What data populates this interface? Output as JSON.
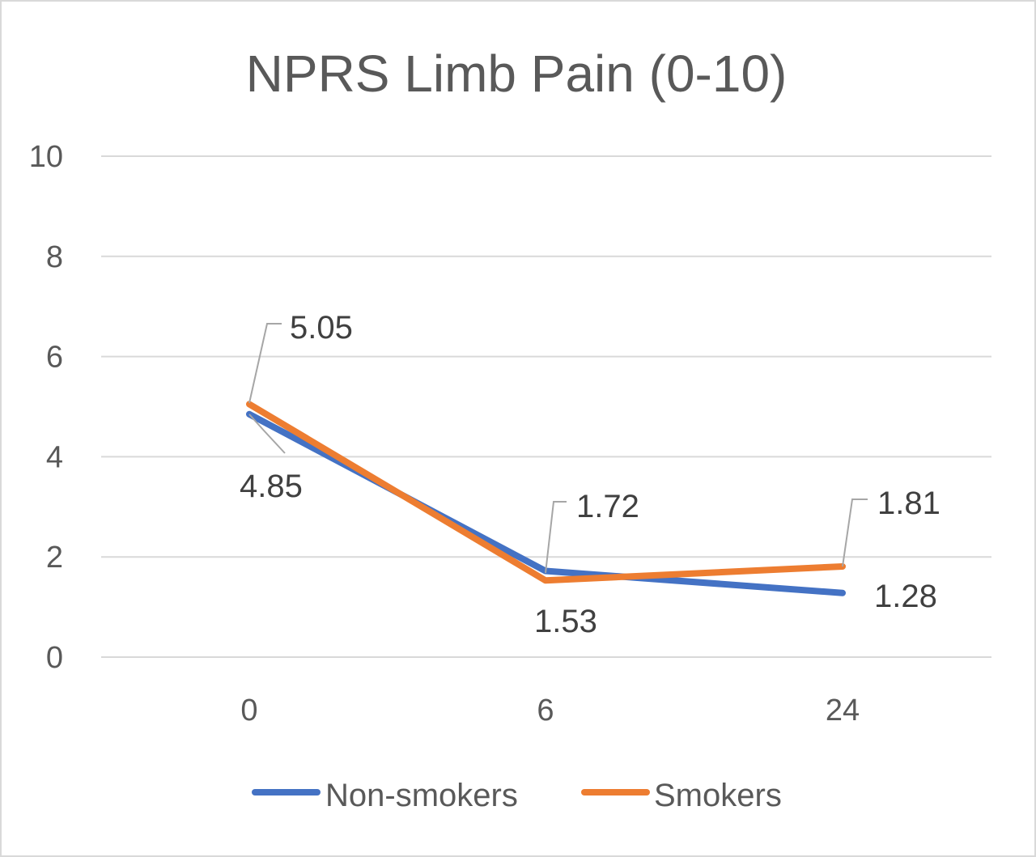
{
  "chart_data": {
    "type": "line",
    "title": "NPRS Limb Pain (0-10)",
    "xlabel": "",
    "ylabel": "",
    "categories": [
      "0",
      "6",
      "24"
    ],
    "ylim": [
      0,
      10
    ],
    "yticks": [
      0,
      2,
      4,
      6,
      8,
      10
    ],
    "grid": true,
    "legend_position": "bottom",
    "series": [
      {
        "name": "Non-smokers",
        "values": [
          4.85,
          1.72,
          1.28
        ],
        "labels": [
          "4.85",
          "1.72",
          "1.28"
        ],
        "color": "#4472c4"
      },
      {
        "name": "Smokers",
        "values": [
          5.05,
          1.53,
          1.81
        ],
        "labels": [
          "5.05",
          "1.53",
          "1.81"
        ],
        "color": "#ed7d31"
      }
    ]
  }
}
